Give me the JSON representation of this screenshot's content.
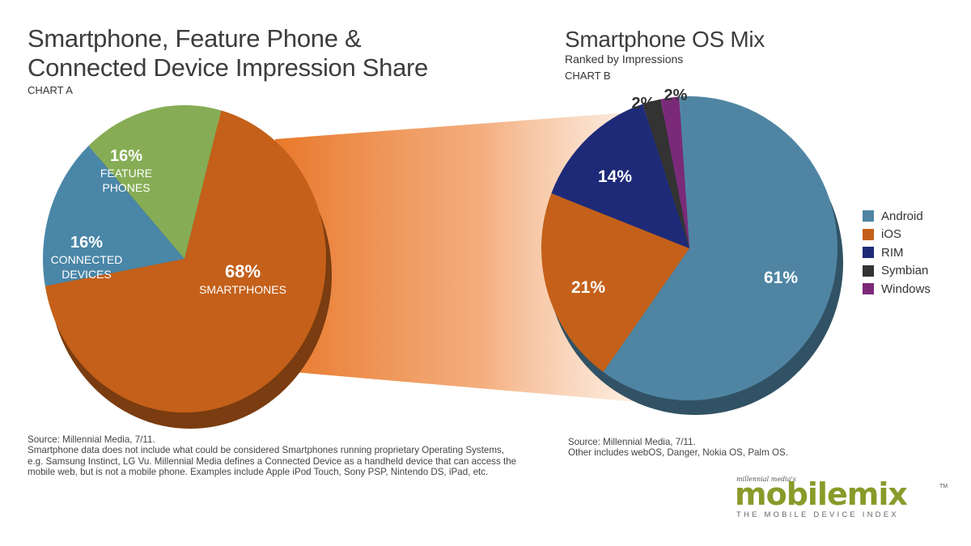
{
  "header_a": {
    "title": "Smartphone, Feature Phone & Connected Device Impression Share",
    "subtitle": "CHART A"
  },
  "header_b": {
    "title": "Smartphone OS Mix",
    "subtitle": "Ranked by Impressions",
    "chart_label": "CHART B"
  },
  "chart_data": [
    {
      "type": "pie",
      "title": "Smartphone, Feature Phone & Connected Device Impression Share",
      "subtitle": "CHART A",
      "slices": [
        {
          "label_line1": "SMARTPHONES",
          "label_line2": "",
          "value": 68,
          "display": "68%",
          "color": "#c4601a"
        },
        {
          "label_line1": "CONNECTED",
          "label_line2": "DEVICES",
          "value": 16,
          "display": "16%",
          "color": "#4a86a8"
        },
        {
          "label_line1": "FEATURE",
          "label_line2": "PHONES",
          "value": 16,
          "display": "16%",
          "color": "#86ad55"
        }
      ]
    },
    {
      "type": "pie",
      "title": "Smartphone OS Mix",
      "subtitle": "Ranked by Impressions",
      "slices": [
        {
          "name": "Android",
          "value": 61,
          "display": "61%",
          "color": "#4f85a3"
        },
        {
          "name": "iOS",
          "value": 21,
          "display": "21%",
          "color": "#c4601a"
        },
        {
          "name": "RIM",
          "value": 14,
          "display": "14%",
          "color": "#1e2a78"
        },
        {
          "name": "Symbian",
          "value": 2,
          "display": "2%",
          "color": "#333333"
        },
        {
          "name": "Windows",
          "value": 2,
          "display": "2%",
          "color": "#7b2a7a"
        }
      ],
      "legend": [
        "Android",
        "iOS",
        "RIM",
        "Symbian",
        "Windows"
      ],
      "legend_position": "right"
    }
  ],
  "sources": {
    "a_line1": "Source: Millennial Media, 7/11.",
    "a_line2": "Smartphone data does not include what could be considered Smartphones running proprietary Operating Systems,",
    "a_line3": "e.g. Samsung Instinct, LG Vu. Millennial Media defines a Connected Device as a handheld device that can access the",
    "a_line4": "mobile web, but is not a mobile phone. Examples include Apple iPod Touch, Sony PSP, Nintendo DS, iPad, etc.",
    "b_line1": "Source: Millennial Media, 7/11.",
    "b_line2": "Other includes webOS, Danger, Nokia OS, Palm OS."
  },
  "logo": {
    "small": "millennial media's",
    "main": "mobilemix",
    "tm": "TM",
    "tagline": "THE MOBILE DEVICE INDEX"
  },
  "colors": {
    "smartphones": "#c4601a",
    "connected": "#4a86a8",
    "feature": "#86ad55",
    "android": "#4f85a3",
    "ios": "#c4601a",
    "rim": "#1e2a78",
    "symbian": "#333333",
    "windows": "#7b2a7a",
    "connector": "#e8782a",
    "logo_green": "#8a9a2a"
  }
}
